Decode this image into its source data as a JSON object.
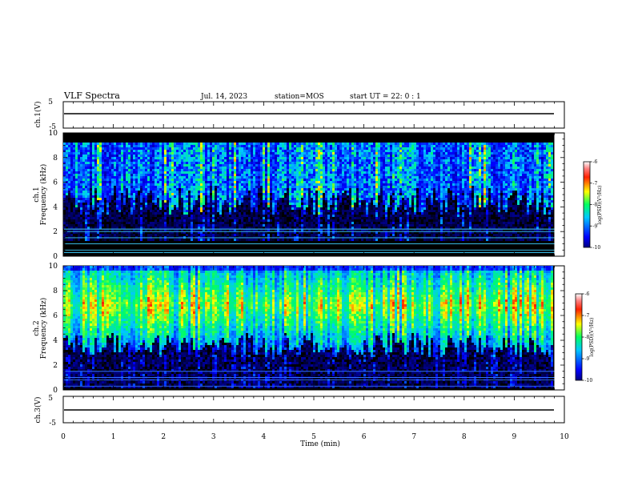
{
  "header": {
    "title": "VLF Spectra",
    "date": "Jul. 14, 2023",
    "station": "station=MOS",
    "start": "start UT =  22: 0  : 1"
  },
  "chart_data": {
    "type": "heatmap",
    "xlabel": "Time (min)",
    "xlim": [
      0,
      10
    ],
    "x_ticks": [
      "0",
      "1",
      "2",
      "3",
      "4",
      "5",
      "6",
      "7",
      "8",
      "9",
      "10"
    ],
    "panels": [
      {
        "id": "ch1-voltage",
        "type": "line",
        "ylabel": "ch.1(V)",
        "ylim": [
          -5,
          5
        ],
        "y_ticks": [
          "5",
          "-5"
        ],
        "level": 0
      },
      {
        "id": "ch1-spectrogram",
        "type": "heatmap",
        "ylabel_top": "ch.1",
        "ylabel": "Frequency (kHz)",
        "ylim": [
          0,
          10
        ],
        "y_ticks": [
          "0",
          "2",
          "4",
          "6",
          "8",
          "10"
        ],
        "data_end_min": 9.8,
        "colorbar": {
          "label": "log(PSD)(V²/Hz)",
          "range": [
            -10,
            -6
          ],
          "ticks": [
            "-6",
            "-7",
            "-8",
            "-9",
            "-10"
          ]
        },
        "emission_band_khz": [
          3.5,
          9.2
        ],
        "lines_khz": [
          0.3,
          0.5,
          1.0,
          1.5,
          2.0,
          2.2
        ]
      },
      {
        "id": "ch2-spectrogram",
        "type": "heatmap",
        "ylabel_top": "ch.2",
        "ylabel": "Frequency (kHz)",
        "ylim": [
          0,
          10
        ],
        "y_ticks": [
          "0",
          "2",
          "4",
          "6",
          "8",
          "10"
        ],
        "data_end_min": 9.8,
        "colorbar": {
          "label": "log(PSD)(V²/Hz)",
          "range": [
            -10,
            -6
          ],
          "ticks": [
            "-6",
            "-7",
            "-8",
            "-9",
            "-10"
          ]
        },
        "emission_band_khz": [
          3.0,
          10.0
        ],
        "peak_khz": 6.8,
        "lines_khz": [
          0.3,
          0.8,
          1.0,
          1.5
        ]
      },
      {
        "id": "ch3-voltage",
        "type": "line",
        "ylabel": "ch.3(V)",
        "ylim": [
          -5,
          5
        ],
        "y_ticks": [
          "5",
          "-5"
        ],
        "level": 0
      }
    ]
  }
}
